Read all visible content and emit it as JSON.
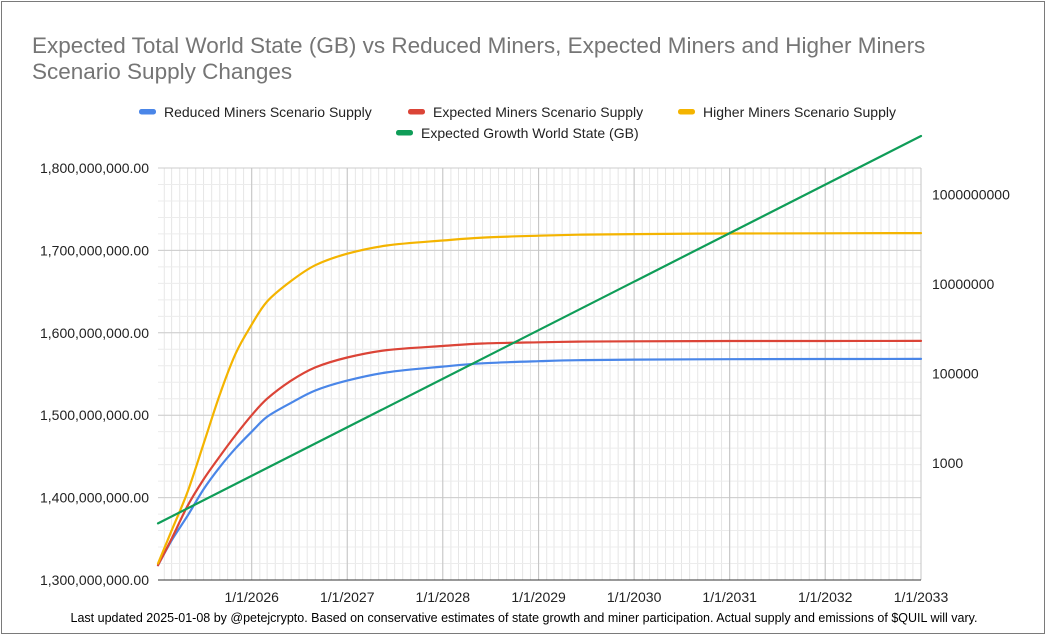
{
  "chart_data": {
    "type": "line",
    "title": "Expected Total World State (GB) vs Reduced Miners, Expected Miners and Higher Miners Scenario Supply Changes",
    "footnote": "Last updated 2025-01-08 by @petejcrypto. Based on conservative estimates of state growth and miner participation. Actual supply and emissions of $QUIL will vary.",
    "xlabel": "",
    "ylabel": "",
    "x_ticks": [
      "1/1/2026",
      "1/1/2027",
      "1/1/2028",
      "1/1/2029",
      "1/1/2030",
      "1/1/2031",
      "1/1/2032",
      "1/1/2033"
    ],
    "x_range": [
      "2025-01-08",
      "2033-01-01"
    ],
    "y_left": {
      "ticks": [
        "1,300,000,000.00",
        "1,400,000,000.00",
        "1,500,000,000.00",
        "1,600,000,000.00",
        "1,700,000,000.00",
        "1,800,000,000.00"
      ],
      "ylim": [
        1300000000,
        1800000000
      ]
    },
    "y_right": {
      "scale": "log",
      "ticks": [
        "1000",
        "100000",
        "10000000",
        "1000000000"
      ],
      "tick_values": [
        1000,
        100000,
        10000000,
        1000000000
      ]
    },
    "legend": {
      "position": "top"
    },
    "grid": true,
    "series": [
      {
        "name": "Reduced Miners Scenario Supply",
        "color": "#4a86e8",
        "axis": "left",
        "x": [
          "2025-01-08",
          "2025-03-01",
          "2025-05-01",
          "2025-07-01",
          "2025-09-01",
          "2025-11-01",
          "2026-01-01",
          "2026-03-01",
          "2026-06-01",
          "2026-09-01",
          "2027-01-01",
          "2027-06-01",
          "2028-01-01",
          "2028-06-01",
          "2029-01-01",
          "2029-06-01",
          "2030-01-01",
          "2031-01-01",
          "2032-01-01",
          "2033-01-01"
        ],
        "values": [
          1318000000,
          1348000000,
          1378000000,
          1410000000,
          1437000000,
          1460000000,
          1480000000,
          1498000000,
          1515000000,
          1530000000,
          1542000000,
          1552000000,
          1559000000,
          1563000000,
          1565500000,
          1566800000,
          1567500000,
          1568000000,
          1568200000,
          1568300000
        ]
      },
      {
        "name": "Expected Miners Scenario Supply",
        "color": "#db4437",
        "axis": "left",
        "x": [
          "2025-01-08",
          "2025-03-01",
          "2025-05-01",
          "2025-07-01",
          "2025-09-01",
          "2025-11-01",
          "2026-01-01",
          "2026-03-01",
          "2026-06-01",
          "2026-09-01",
          "2027-01-01",
          "2027-06-01",
          "2028-01-01",
          "2028-06-01",
          "2029-01-01",
          "2029-06-01",
          "2030-01-01",
          "2031-01-01",
          "2032-01-01",
          "2033-01-01"
        ],
        "values": [
          1318000000,
          1350000000,
          1390000000,
          1422000000,
          1450000000,
          1476000000,
          1500000000,
          1520000000,
          1542000000,
          1558000000,
          1570000000,
          1579000000,
          1584000000,
          1587000000,
          1588500000,
          1589300000,
          1589700000,
          1590000000,
          1590100000,
          1590200000
        ]
      },
      {
        "name": "Higher Miners Scenario Supply",
        "color": "#f4b400",
        "axis": "left",
        "x": [
          "2025-01-08",
          "2025-03-01",
          "2025-05-01",
          "2025-07-01",
          "2025-09-01",
          "2025-11-01",
          "2026-01-01",
          "2026-03-01",
          "2026-06-01",
          "2026-09-01",
          "2027-01-01",
          "2027-06-01",
          "2028-01-01",
          "2028-06-01",
          "2029-01-01",
          "2029-06-01",
          "2030-01-01",
          "2031-01-01",
          "2032-01-01",
          "2033-01-01"
        ],
        "values": [
          1320000000,
          1360000000,
          1407000000,
          1465000000,
          1525000000,
          1575000000,
          1610000000,
          1638000000,
          1663000000,
          1682000000,
          1696000000,
          1706000000,
          1712000000,
          1715500000,
          1717800000,
          1719000000,
          1719800000,
          1720500000,
          1720800000,
          1721000000
        ]
      },
      {
        "name": "Expected Growth World State (GB)",
        "color": "#0f9d58",
        "axis": "right",
        "x": [
          "2025-01-08",
          "2033-01-01"
        ],
        "values": [
          45,
          20000000000
        ]
      }
    ]
  }
}
